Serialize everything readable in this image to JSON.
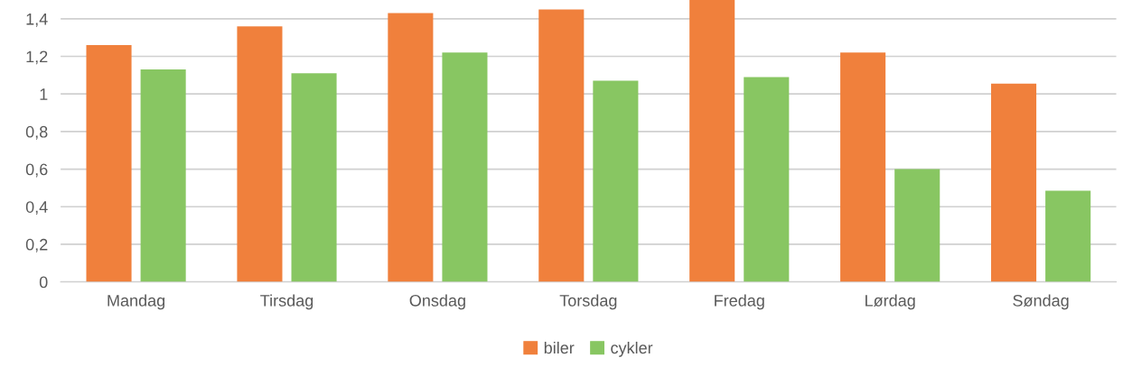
{
  "chart_data": {
    "type": "bar",
    "categories": [
      "Mandag",
      "Tirsdag",
      "Onsdag",
      "Torsdag",
      "Fredag",
      "Lørdag",
      "Søndag"
    ],
    "series": [
      {
        "name": "biler",
        "color": "#f0803c",
        "values": [
          1.26,
          1.36,
          1.43,
          1.45,
          1.5,
          1.22,
          1.055
        ]
      },
      {
        "name": "cykler",
        "color": "#88c662",
        "values": [
          1.13,
          1.11,
          1.22,
          1.07,
          1.09,
          0.6,
          0.485
        ]
      }
    ],
    "ylim": [
      0,
      1.5
    ],
    "yticks": [
      {
        "value": 0,
        "label": "0"
      },
      {
        "value": 0.2,
        "label": "0,2"
      },
      {
        "value": 0.4,
        "label": "0,4"
      },
      {
        "value": 0.6,
        "label": "0,6"
      },
      {
        "value": 0.8,
        "label": "0,8"
      },
      {
        "value": 1,
        "label": "1"
      },
      {
        "value": 1.2,
        "label": "1,2"
      },
      {
        "value": 1.4,
        "label": "1,4"
      }
    ],
    "grid": "y",
    "legend": "bottom"
  }
}
